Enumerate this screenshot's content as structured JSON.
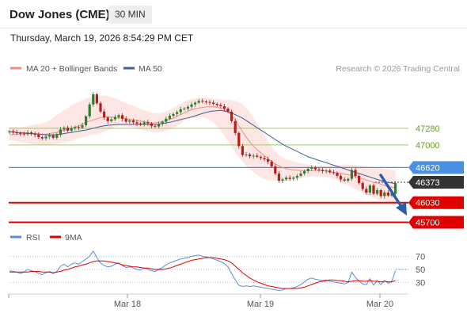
{
  "header": {
    "title": "Dow Jones (CME)",
    "timeframe": "30 MIN",
    "datetime": "Thursday, March 19, 2026 8:54:29 PM CET"
  },
  "legend": {
    "ma20_label": "MA 20 + Bollinger Bands",
    "ma50_label": "MA 50",
    "credit": "Research © 2026 Trading Central",
    "rsi_label": "RSI",
    "rsi_ma_label": "9MA"
  },
  "colors": {
    "up": "#2e7d32",
    "down": "#b71c1c",
    "ma20": "#f28b82",
    "band_fill": "#fde3e0",
    "ma50": "#3f5f9c",
    "resistance": "#9ccc65",
    "pivot": "#4a90e2",
    "support": "#e00000",
    "current": "#333333",
    "arrow": "#2b5ea7",
    "rsi": "#5b8dde",
    "rsi_ma": "#e00000"
  },
  "chart_data": [
    {
      "type": "candlestick",
      "title": "",
      "x_ticks": [
        "Mar 18",
        "Mar 19",
        "Mar 20"
      ],
      "levels": [
        {
          "name": "resistance-2",
          "value": 47280,
          "label": "47280"
        },
        {
          "name": "resistance-1",
          "value": 47000,
          "label": "47000"
        },
        {
          "name": "pivot",
          "value": 46620,
          "label": "46620"
        },
        {
          "name": "current",
          "value": 46373,
          "label": "46373"
        },
        {
          "name": "support-1",
          "value": 46030,
          "label": "46030"
        },
        {
          "name": "support-2",
          "value": 45700,
          "label": "45700"
        }
      ],
      "ylim": [
        45680,
        48130
      ],
      "close": [
        47230,
        47210,
        47200,
        47190,
        47180,
        47210,
        47190,
        47170,
        47130,
        47110,
        47140,
        47160,
        47120,
        47170,
        47260,
        47290,
        47240,
        47280,
        47300,
        47290,
        47330,
        47480,
        47680,
        47850,
        47700,
        47560,
        47460,
        47400,
        47430,
        47470,
        47500,
        47440,
        47390,
        47410,
        47380,
        47360,
        47340,
        47380,
        47360,
        47320,
        47310,
        47350,
        47390,
        47440,
        47490,
        47520,
        47550,
        47600,
        47610,
        47640,
        47680,
        47710,
        47740,
        47730,
        47720,
        47710,
        47690,
        47670,
        47650,
        47610,
        47560,
        47400,
        47200,
        46980,
        46830,
        46840,
        46810,
        46820,
        46800,
        46780,
        46760,
        46720,
        46640,
        46520,
        46400,
        46420,
        46450,
        46430,
        46450,
        46480,
        46520,
        46560,
        46600,
        46620,
        46590,
        46580,
        46560,
        46570,
        46540,
        46530,
        46480,
        46420,
        46400,
        46430,
        46580,
        46480,
        46360,
        46260,
        46200,
        46320,
        46180,
        46240,
        46140,
        46200,
        46150,
        46180,
        46360
      ],
      "ma20": [
        47170,
        47175,
        47180,
        47180,
        47185,
        47190,
        47190,
        47190,
        47185,
        47180,
        47180,
        47190,
        47200,
        47210,
        47230,
        47250,
        47260,
        47280,
        47300,
        47320,
        47350,
        47380,
        47400,
        47420,
        47440,
        47460,
        47470,
        47470,
        47470,
        47460,
        47460,
        47450,
        47440,
        47430,
        47420,
        47410,
        47400,
        47390,
        47380,
        47370,
        47370,
        47380,
        47390,
        47410,
        47430,
        47450,
        47480,
        47510,
        47540,
        47570,
        47590,
        47610,
        47620,
        47630,
        47640,
        47640,
        47640,
        47630,
        47620,
        47600,
        47560,
        47500,
        47420,
        47320,
        47220,
        47130,
        47050,
        46980,
        46920,
        46870,
        46820,
        46770,
        46720,
        46680,
        46650,
        46620,
        46600,
        46590,
        46580,
        46575,
        46570,
        46570,
        46570,
        46570,
        46570,
        46570,
        46565,
        46560,
        46550,
        46540,
        46530,
        46520,
        46510,
        46500,
        46490,
        46470,
        46450,
        46430,
        46410,
        46390,
        46370,
        46360,
        46340,
        46320,
        46300,
        46290,
        46280
      ],
      "bb_upper": [
        47300,
        47300,
        47300,
        47300,
        47310,
        47320,
        47330,
        47340,
        47350,
        47360,
        47380,
        47410,
        47450,
        47500,
        47540,
        47580,
        47620,
        47660,
        47690,
        47720,
        47750,
        47780,
        47800,
        47810,
        47820,
        47830,
        47830,
        47820,
        47800,
        47780,
        47760,
        47730,
        47700,
        47680,
        47660,
        47630,
        47600,
        47580,
        47560,
        47540,
        47530,
        47530,
        47540,
        47560,
        47590,
        47620,
        47650,
        47690,
        47720,
        47750,
        47770,
        47780,
        47790,
        47790,
        47790,
        47790,
        47780,
        47770,
        47760,
        47760,
        47760,
        47750,
        47740,
        47720,
        47680,
        47620,
        47550,
        47460,
        47360,
        47260,
        47160,
        47060,
        46970,
        46890,
        46830,
        46790,
        46760,
        46740,
        46720,
        46700,
        46690,
        46680,
        46670,
        46660,
        46650,
        46650,
        46650,
        46650,
        46650,
        46660,
        46660,
        46670,
        46670,
        46670,
        46670,
        46660,
        46660,
        46650,
        46640,
        46630,
        46620,
        46610,
        46610,
        46600,
        46590,
        46580,
        46570
      ],
      "bb_lower": [
        47080,
        47070,
        47060,
        47050,
        47040,
        47030,
        47020,
        47010,
        47000,
        46990,
        46990,
        47000,
        47010,
        47020,
        47030,
        47040,
        47050,
        47070,
        47090,
        47110,
        47130,
        47150,
        47160,
        47170,
        47180,
        47200,
        47220,
        47250,
        47270,
        47300,
        47310,
        47320,
        47320,
        47310,
        47300,
        47280,
        47260,
        47240,
        47230,
        47220,
        47210,
        47210,
        47220,
        47240,
        47260,
        47280,
        47320,
        47360,
        47400,
        47430,
        47450,
        47460,
        47460,
        47460,
        47450,
        47420,
        47380,
        47320,
        47240,
        47150,
        47060,
        46970,
        46880,
        46800,
        46720,
        46650,
        46590,
        46540,
        46500,
        46460,
        46430,
        46410,
        46400,
        46400,
        46400,
        46400,
        46400,
        46410,
        46420,
        46430,
        46440,
        46450,
        46460,
        46470,
        46470,
        46470,
        46470,
        46460,
        46450,
        46430,
        46410,
        46380,
        46350,
        46320,
        46290,
        46260,
        46230,
        46200,
        46170,
        46140,
        46110,
        46090,
        46070,
        46050,
        46030,
        46020,
        46010
      ],
      "ma50": [
        47220,
        47215,
        47210,
        47205,
        47200,
        47195,
        47190,
        47185,
        47180,
        47175,
        47170,
        47170,
        47170,
        47175,
        47180,
        47190,
        47200,
        47210,
        47220,
        47230,
        47240,
        47250,
        47265,
        47280,
        47295,
        47310,
        47320,
        47330,
        47335,
        47340,
        47345,
        47345,
        47345,
        47345,
        47345,
        47345,
        47345,
        47345,
        47345,
        47345,
        47345,
        47350,
        47360,
        47370,
        47380,
        47395,
        47410,
        47425,
        47440,
        47455,
        47470,
        47490,
        47510,
        47530,
        47545,
        47560,
        47570,
        47575,
        47580,
        47570,
        47555,
        47535,
        47510,
        47480,
        47450,
        47410,
        47370,
        47330,
        47290,
        47250,
        47210,
        47170,
        47130,
        47090,
        47050,
        47010,
        46980,
        46950,
        46920,
        46890,
        46860,
        46830,
        46800,
        46780,
        46760,
        46740,
        46720,
        46700,
        46680,
        46660,
        46640,
        46620,
        46600,
        46580,
        46560,
        46540,
        46520,
        46500,
        46480,
        46460,
        46440,
        46420,
        46400,
        46385,
        46370,
        46360,
        46350
      ]
    },
    {
      "type": "line",
      "title": "",
      "series_names": [
        "RSI",
        "9MA"
      ],
      "y_ticks": [
        70,
        50,
        30
      ],
      "ylim": [
        15,
        85
      ],
      "rsi": [
        48,
        47,
        46,
        44,
        46,
        50,
        48,
        47,
        44,
        42,
        45,
        47,
        44,
        47,
        55,
        58,
        54,
        58,
        60,
        58,
        62,
        66,
        70,
        78,
        68,
        60,
        56,
        54,
        55,
        58,
        60,
        56,
        53,
        54,
        52,
        50,
        49,
        52,
        50,
        48,
        47,
        50,
        53,
        57,
        60,
        62,
        64,
        66,
        67,
        68,
        70,
        71,
        72,
        70,
        69,
        68,
        66,
        64,
        62,
        59,
        54,
        44,
        34,
        26,
        24,
        25,
        24,
        25,
        24,
        23,
        22,
        21,
        20,
        19,
        18,
        19,
        21,
        21,
        22,
        24,
        27,
        31,
        35,
        37,
        35,
        34,
        33,
        34,
        32,
        31,
        30,
        29,
        28,
        30,
        46,
        38,
        32,
        28,
        27,
        36,
        26,
        33,
        27,
        33,
        29,
        32,
        48
      ],
      "rsi_ma": [
        46,
        46,
        46,
        46,
        46,
        46,
        47,
        47,
        47,
        46,
        46,
        46,
        45,
        46,
        47,
        49,
        50,
        52,
        54,
        55,
        57,
        58,
        60,
        62,
        63,
        63,
        63,
        62,
        61,
        60,
        59,
        57,
        56,
        55,
        54,
        54,
        53,
        52,
        52,
        51,
        50,
        50,
        50,
        51,
        52,
        54,
        56,
        58,
        60,
        62,
        64,
        65,
        66,
        67,
        68,
        68,
        68,
        67,
        66,
        65,
        63,
        60,
        55,
        50,
        45,
        41,
        37,
        34,
        31,
        29,
        27,
        25,
        24,
        23,
        22,
        21,
        21,
        21,
        21,
        21,
        22,
        23,
        25,
        27,
        29,
        31,
        32,
        33,
        34,
        34,
        33,
        33,
        32,
        31,
        32,
        33,
        33,
        32,
        32,
        33,
        32,
        32,
        31,
        32,
        31,
        31,
        33
      ],
      "ma_level": 50
    }
  ]
}
